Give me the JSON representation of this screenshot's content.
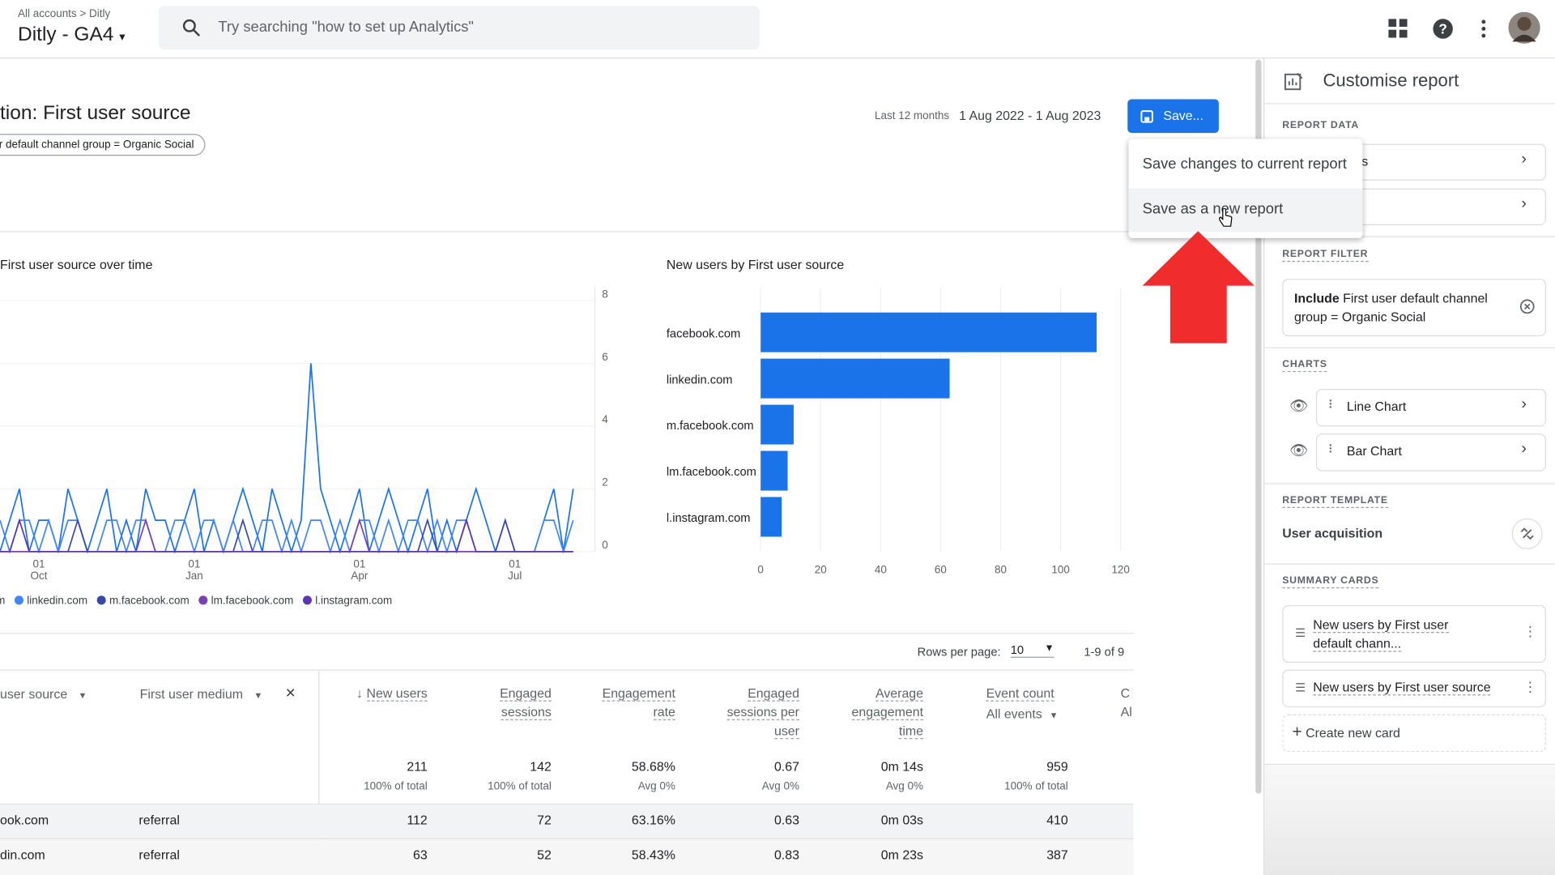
{
  "header": {
    "breadcrumb": [
      "All accounts",
      "Ditly"
    ],
    "property": "Ditly - GA4",
    "search_placeholder": "Try searching \"how to set up Analytics\""
  },
  "report": {
    "title": "tion: First user source",
    "filter_chip": "r default channel group = Organic Social",
    "date_label": "Last 12 months",
    "date_range": "1 Aug 2022 - 1 Aug 2023",
    "save_button": "Save...",
    "save_menu": [
      "Save changes to current report",
      "Save as a new report"
    ]
  },
  "line_chart": {
    "type": "line",
    "title": "First user source over time",
    "categories": [
      null,
      null,
      null,
      null,
      "01 Oct",
      null,
      null,
      null,
      null,
      null,
      null,
      null,
      null,
      null,
      null,
      null,
      null,
      null,
      null,
      null,
      "01 Jan",
      null,
      null,
      null,
      null,
      null,
      null,
      null,
      null,
      null,
      null,
      null,
      null,
      null,
      null,
      null,
      null,
      "01 Apr",
      null,
      null,
      null,
      null,
      null,
      null,
      null,
      null,
      null,
      null,
      null,
      null,
      null,
      null,
      null,
      "01 Jul",
      null,
      null,
      null,
      null,
      null,
      null
    ],
    "ylim": [
      0,
      8
    ],
    "yticks": [
      0,
      2,
      4,
      6,
      8
    ],
    "series": [
      {
        "name": "m",
        "color": "#1a73e8",
        "values": [
          0,
          1,
          2,
          0,
          1,
          1,
          0,
          2,
          1,
          0,
          1,
          2,
          0,
          1,
          0,
          2,
          1,
          1,
          0,
          1,
          2,
          0,
          1,
          0,
          1,
          2,
          1,
          0,
          2,
          1,
          0,
          1,
          6,
          2,
          1,
          0,
          1,
          2,
          0,
          1,
          2,
          1,
          0,
          1,
          2,
          0,
          1,
          0,
          1,
          2,
          1,
          0,
          0,
          0,
          0,
          0,
          1,
          2,
          0,
          2
        ]
      },
      {
        "name": "linkedin.com",
        "color": "#4285f4",
        "values": [
          1,
          0,
          1,
          1,
          0,
          1,
          0,
          1,
          1,
          0,
          0,
          1,
          1,
          0,
          1,
          1,
          0,
          0,
          1,
          1,
          0,
          1,
          1,
          0,
          1,
          0,
          0,
          1,
          1,
          0,
          1,
          0,
          1,
          1,
          0,
          1,
          0,
          1,
          1,
          0,
          1,
          0,
          1,
          1,
          0,
          1,
          0,
          1,
          1,
          0,
          0,
          0,
          1,
          0,
          0,
          0,
          1,
          1,
          0,
          1
        ]
      },
      {
        "name": "m.facebook.com",
        "color": "#3949ab",
        "values": [
          0,
          0,
          0,
          0,
          0,
          0,
          0,
          0,
          1,
          0,
          0,
          0,
          0,
          0,
          0,
          0,
          0,
          0,
          0,
          0,
          0,
          0,
          0,
          0,
          0,
          1,
          0,
          0,
          0,
          0,
          0,
          0,
          0,
          0,
          0,
          0,
          0,
          0,
          0,
          0,
          0,
          0,
          0,
          0,
          1,
          0,
          0,
          0,
          0,
          0,
          0,
          0,
          1,
          0,
          0,
          0,
          0,
          0,
          0,
          0
        ]
      },
      {
        "name": "lm.facebook.com",
        "color": "#7b3fb5",
        "values": [
          0,
          0,
          0,
          0,
          0,
          0,
          0,
          0,
          0,
          0,
          0,
          0,
          0,
          0,
          0,
          1,
          0,
          0,
          0,
          0,
          0,
          0,
          0,
          0,
          0,
          0,
          0,
          0,
          0,
          0,
          0,
          0,
          0,
          0,
          0,
          0,
          0,
          1,
          0,
          0,
          0,
          0,
          0,
          0,
          0,
          0,
          0,
          0,
          0,
          0,
          0,
          0,
          0,
          0,
          0,
          0,
          0,
          0,
          0,
          0
        ]
      },
      {
        "name": "l.instagram.com",
        "color": "#5e35b1",
        "values": [
          0,
          0,
          1,
          0,
          0,
          0,
          0,
          0,
          0,
          0,
          0,
          0,
          0,
          0,
          0,
          0,
          0,
          0,
          0,
          0,
          0,
          0,
          0,
          0,
          0,
          0,
          0,
          0,
          0,
          0,
          0,
          0,
          0,
          0,
          0,
          0,
          0,
          0,
          0,
          0,
          0,
          0,
          0,
          0,
          0,
          0,
          0,
          0,
          1,
          0,
          0,
          0,
          0,
          0,
          0,
          0,
          0,
          0,
          0,
          0
        ]
      }
    ]
  },
  "bar_chart": {
    "type": "bar",
    "title": "New users by First user source",
    "categories": [
      "facebook.com",
      "linkedin.com",
      "m.facebook.com",
      "lm.facebook.com",
      "l.instagram.com"
    ],
    "values": [
      112,
      63,
      11,
      9,
      7
    ],
    "color": "#1a73e8",
    "xlim": [
      0,
      120
    ],
    "xticks": [
      0,
      20,
      40,
      60,
      80,
      100,
      120
    ]
  },
  "table": {
    "rows_per_page_label": "Rows per page:",
    "rows_per_page": "10",
    "pagination": "1-9 of 9",
    "dimensions": [
      "user source",
      "First user medium"
    ],
    "metrics": [
      "New users",
      "Engaged sessions",
      "Engagement rate",
      "Engaged sessions per user",
      "Average engagement time",
      "Event count"
    ],
    "event_filter": "All events",
    "cut_column": [
      "C",
      "Al"
    ],
    "totals": [
      [
        "211",
        "100% of total"
      ],
      [
        "142",
        "100% of total"
      ],
      [
        "58.68%",
        "Avg 0%"
      ],
      [
        "0.67",
        "Avg 0%"
      ],
      [
        "0m 14s",
        "Avg 0%"
      ],
      [
        "959",
        "100% of total"
      ]
    ],
    "rows": [
      [
        "ook.com",
        "referral",
        "112",
        "72",
        "63.16%",
        "0.63",
        "0m 03s",
        "410"
      ],
      [
        "din.com",
        "referral",
        "63",
        "52",
        "58.43%",
        "0.83",
        "0m 23s",
        "387"
      ]
    ]
  },
  "panel": {
    "title": "Customise report",
    "report_data": "REPORT DATA",
    "report_data_item": "s",
    "report_filter": "REPORT FILTER",
    "filter_keyword": "Include",
    "filter_text": " First user default channel group = Organic Social",
    "charts": "CHARTS",
    "chart_items": [
      "Line Chart",
      "Bar Chart"
    ],
    "report_template": "REPORT TEMPLATE",
    "template_name": "User acquisition",
    "summary_cards": "SUMMARY CARDS",
    "cards": [
      "New users by First user default chann...",
      "New users by First user source"
    ],
    "create_card": "Create new card"
  }
}
